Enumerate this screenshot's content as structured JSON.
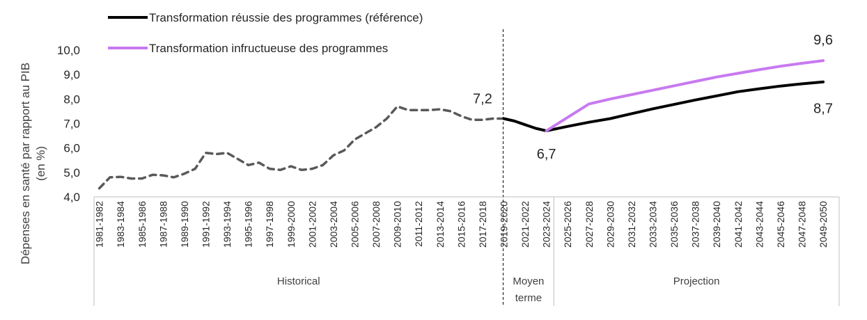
{
  "chart_data": {
    "type": "line",
    "ylabel": "Dépenses en santé par rapport au PIB (en %)",
    "ylim": [
      4.0,
      10.0
    ],
    "y_ticks": [
      "4,0",
      "5,0",
      "6,0",
      "7,0",
      "8,0",
      "9,0",
      "10,0"
    ],
    "x_ticks": [
      "1981-1982",
      "1983-1984",
      "1985-1986",
      "1987-1988",
      "1989-1990",
      "1991-1992",
      "1993-1994",
      "1995-1996",
      "1997-1998",
      "1999-2000",
      "2001-2002",
      "2003-2004",
      "2005-2006",
      "2007-2008",
      "2009-2010",
      "2011-2012",
      "2013-2014",
      "2015-2016",
      "2017-2018",
      "2019-2020",
      "2021-2022",
      "2023-2024",
      "2025-2026",
      "2027-2028",
      "2029-2030",
      "2031-2032",
      "2033-2034",
      "2035-2036",
      "2037-2038",
      "2039-2040",
      "2041-2042",
      "2043-2044",
      "2045-2046",
      "2047-2048",
      "2049-2050"
    ],
    "grid": false,
    "legend_position": "top-left",
    "periods": [
      {
        "label": "Historical",
        "lines": [
          "Historical"
        ]
      },
      {
        "label": "Moyen terme",
        "lines": [
          "Moyen",
          "terme"
        ]
      },
      {
        "label": "Projection",
        "lines": [
          "Projection"
        ]
      }
    ],
    "series": [
      {
        "name": "Historique",
        "color": "#595959",
        "dashed": true,
        "x": [
          "1981-1982",
          "1982-1983",
          "1983-1984",
          "1984-1985",
          "1985-1986",
          "1986-1987",
          "1987-1988",
          "1988-1989",
          "1989-1990",
          "1990-1991",
          "1991-1992",
          "1992-1993",
          "1993-1994",
          "1994-1995",
          "1995-1996",
          "1996-1997",
          "1997-1998",
          "1998-1999",
          "1999-2000",
          "2000-2001",
          "2001-2002",
          "2002-2003",
          "2003-2004",
          "2004-2005",
          "2005-2006",
          "2006-2007",
          "2007-2008",
          "2008-2009",
          "2009-2010",
          "2010-2011",
          "2011-2012",
          "2012-2013",
          "2013-2014",
          "2014-2015",
          "2015-2016",
          "2016-2017",
          "2017-2018",
          "2018-2019",
          "2019-2020"
        ],
        "values": [
          4.35,
          4.8,
          4.82,
          4.75,
          4.75,
          4.9,
          4.88,
          4.8,
          4.95,
          5.15,
          5.8,
          5.75,
          5.8,
          5.55,
          5.3,
          5.4,
          5.15,
          5.1,
          5.25,
          5.1,
          5.15,
          5.3,
          5.7,
          5.9,
          6.35,
          6.6,
          6.85,
          7.2,
          7.7,
          7.55,
          7.55,
          7.55,
          7.58,
          7.5,
          7.3,
          7.15,
          7.15,
          7.2,
          7.2
        ]
      },
      {
        "name": "Transformation réussie des programmes (référence)",
        "color": "#000000",
        "dashed": false,
        "x": [
          "2019-2020",
          "2020-2021",
          "2021-2022",
          "2022-2023",
          "2023-2024",
          "2025-2026",
          "2027-2028",
          "2029-2030",
          "2031-2032",
          "2033-2034",
          "2035-2036",
          "2037-2038",
          "2039-2040",
          "2041-2042",
          "2043-2044",
          "2045-2046",
          "2047-2048",
          "2049-2050"
        ],
        "values": [
          7.2,
          7.1,
          6.95,
          6.8,
          6.7,
          6.88,
          7.05,
          7.2,
          7.4,
          7.6,
          7.78,
          7.96,
          8.13,
          8.3,
          8.42,
          8.53,
          8.62,
          8.7
        ]
      },
      {
        "name": "Transformation infructueuse des programmes",
        "color": "#c879f0",
        "dashed": false,
        "x": [
          "2023-2024",
          "2025-2026",
          "2027-2028",
          "2029-2030",
          "2031-2032",
          "2033-2034",
          "2035-2036",
          "2037-2038",
          "2039-2040",
          "2041-2042",
          "2043-2044",
          "2045-2046",
          "2047-2048",
          "2049-2050"
        ],
        "values": [
          6.7,
          7.25,
          7.8,
          8.0,
          8.18,
          8.36,
          8.54,
          8.72,
          8.9,
          9.05,
          9.2,
          9.34,
          9.46,
          9.57
        ]
      }
    ],
    "legend": [
      {
        "label": "Transformation réussie des programmes (référence)",
        "color": "#000000"
      },
      {
        "label": "Transformation infructueuse des programmes",
        "color": "#c879f0"
      }
    ],
    "annotations": [
      {
        "text": "7,2",
        "x": "2017-2018",
        "y": 7.2
      },
      {
        "text": "6,7",
        "x": "2023-2024",
        "y": 6.7
      },
      {
        "text": "9,6",
        "x": "2049-2050",
        "y": 9.6
      },
      {
        "text": "8,7",
        "x": "2049-2050",
        "y": 8.7
      }
    ]
  }
}
